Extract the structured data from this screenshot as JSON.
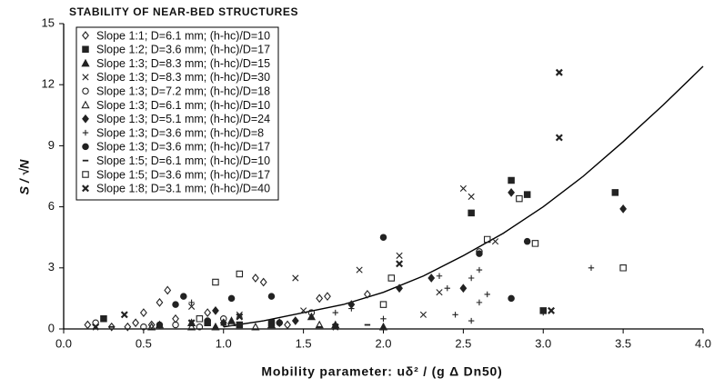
{
  "chart_data": {
    "type": "scatter",
    "title": "STABILITY OF NEAR-BED STRUCTURES",
    "xlabel": "Mobility parameter: uδ² / (g Δ Dn50)",
    "ylabel": "S / √N",
    "xlim": [
      0,
      4
    ],
    "ylim": [
      0,
      15
    ],
    "xticks": [
      {
        "value": 0,
        "label": "0.0"
      },
      {
        "value": 0.5,
        "label": "0.5"
      },
      {
        "value": 1,
        "label": "1.0"
      },
      {
        "value": 1.5,
        "label": "1.5"
      },
      {
        "value": 2,
        "label": "2.0"
      },
      {
        "value": 2.5,
        "label": "2.5"
      },
      {
        "value": 3,
        "label": "3.0"
      },
      {
        "value": 3.5,
        "label": "3.5"
      },
      {
        "value": 4,
        "label": "4.0"
      }
    ],
    "yticks": [
      0,
      3,
      6,
      9,
      12,
      15
    ],
    "legend": "upper-left",
    "series": [
      {
        "name": "Slope 1:1; D=6.1 mm; (h-hc)/D=10",
        "marker": "diamond-open",
        "color": "#222",
        "x": [
          0.15,
          0.3,
          0.45,
          0.5,
          0.6,
          0.65,
          0.7,
          0.9,
          1.2,
          1.25,
          1.4,
          1.6,
          1.65,
          1.9,
          0.55,
          0.4
        ],
        "values": [
          0.2,
          0.1,
          0.3,
          0.8,
          1.3,
          1.9,
          0.5,
          0.8,
          2.5,
          2.3,
          0.2,
          1.5,
          1.6,
          1.7,
          0.2,
          0.1
        ]
      },
      {
        "name": "Slope 1:2; D=3.6 mm; (h-hc)/D=17",
        "marker": "square-filled",
        "color": "#222",
        "x": [
          0.25,
          0.9,
          1.1,
          2.55,
          2.8,
          2.9,
          3.45,
          3.0,
          1.3
        ],
        "values": [
          0.5,
          0.3,
          0.2,
          5.7,
          7.3,
          6.6,
          6.7,
          0.9,
          0.3
        ]
      },
      {
        "name": "Slope 1:3; D=8.3 mm; (h-hc)/D=15",
        "marker": "triangle-filled",
        "color": "#222",
        "x": [
          0.8,
          1.05,
          1.3,
          1.55,
          1.7,
          0.95,
          2.0
        ],
        "values": [
          0.3,
          0.4,
          0.2,
          0.6,
          0.2,
          0.1,
          0.1
        ]
      },
      {
        "name": "Slope 1:3; D=8.3 mm; (h-hc)/D=30",
        "marker": "x",
        "color": "#222",
        "x": [
          0.8,
          1.45,
          1.85,
          2.1,
          2.25,
          2.5,
          2.55,
          2.7,
          2.35,
          1.5,
          1.1
        ],
        "values": [
          1.1,
          2.5,
          2.9,
          3.6,
          0.7,
          6.9,
          6.5,
          4.3,
          1.8,
          0.9,
          0.7
        ]
      },
      {
        "name": "Slope 1:3; D=7.2 mm; (h-hc)/D=18",
        "marker": "circle-open",
        "color": "#222",
        "x": [
          0.2,
          0.5,
          0.7,
          1.0,
          1.35,
          1.55,
          2.6,
          0.85
        ],
        "values": [
          0.3,
          0.1,
          0.2,
          0.5,
          0.3,
          0.8,
          3.8,
          0.1
        ]
      },
      {
        "name": "Slope 1:3; D=6.1 mm; (h-hc)/D=10",
        "marker": "triangle-open",
        "color": "#222",
        "x": [
          0.55,
          0.8,
          1.05,
          1.2,
          1.6,
          0.6
        ],
        "values": [
          0.1,
          0.1,
          0.3,
          0.1,
          0.2,
          0.2
        ]
      },
      {
        "name": "Slope 1:3; D=5.1 mm; (h-hc)/D=24",
        "marker": "diamond-filled",
        "color": "#222",
        "x": [
          0.95,
          1.0,
          1.35,
          1.8,
          2.1,
          2.3,
          2.5,
          2.8,
          3.5,
          1.45
        ],
        "values": [
          0.9,
          0.3,
          0.3,
          1.2,
          2.0,
          2.5,
          2.0,
          6.7,
          5.9,
          0.4
        ]
      },
      {
        "name": "Slope 1:3; D=3.6 mm; (h-hc)/D=8",
        "marker": "plus",
        "color": "#222",
        "x": [
          0.8,
          1.7,
          1.8,
          2.0,
          2.35,
          2.4,
          2.45,
          2.55,
          2.6,
          2.6,
          2.65,
          2.55,
          3.3,
          3.0
        ],
        "values": [
          1.3,
          0.8,
          1.0,
          0.5,
          2.6,
          2.0,
          0.7,
          2.5,
          2.9,
          1.3,
          1.7,
          0.4,
          3.0,
          0.8
        ]
      },
      {
        "name": "Slope 1:3; D=3.6 mm; (h-hc)/D=17",
        "marker": "circle-filled",
        "color": "#222",
        "x": [
          0.6,
          0.7,
          0.75,
          0.9,
          1.05,
          1.3,
          2.0,
          2.6,
          2.8,
          2.9
        ],
        "values": [
          0.2,
          1.2,
          1.6,
          0.4,
          1.5,
          1.6,
          4.5,
          3.7,
          1.5,
          4.3
        ]
      },
      {
        "name": "Slope 1:5; D=6.1 mm; (h-hc)/D=10",
        "marker": "dash",
        "color": "#222",
        "x": [
          0.3,
          1.0,
          1.6,
          1.9
        ],
        "values": [
          0.1,
          0.2,
          0.1,
          0.2
        ]
      },
      {
        "name": "Slope 1:5; D=3.6 mm; (h-hc)/D=17",
        "marker": "square-open",
        "color": "#222",
        "x": [
          0.95,
          1.1,
          2.0,
          2.05,
          2.65,
          2.85,
          2.95,
          3.5,
          0.85
        ],
        "values": [
          2.3,
          2.7,
          1.2,
          2.5,
          4.4,
          6.4,
          4.2,
          3.0,
          0.5
        ]
      },
      {
        "name": "Slope 1:8; D=3.1 mm; (h-hc)/D=40",
        "marker": "x-bold",
        "color": "#222",
        "x": [
          0.38,
          0.2,
          0.8,
          1.1,
          2.1,
          3.1,
          3.1,
          3.05,
          1.7
        ],
        "values": [
          0.7,
          0.1,
          0.3,
          0.6,
          3.2,
          12.6,
          9.4,
          0.9,
          0.1
        ]
      }
    ],
    "curve": {
      "color": "#000",
      "x": [
        1.0,
        1.25,
        1.5,
        1.75,
        2.0,
        2.25,
        2.5,
        2.75,
        3.0,
        3.25,
        3.5,
        3.75,
        4.0
      ],
      "values": [
        0.1,
        0.4,
        0.8,
        1.2,
        1.8,
        2.6,
        3.6,
        4.7,
        6.0,
        7.5,
        9.2,
        11.0,
        12.9
      ]
    }
  }
}
